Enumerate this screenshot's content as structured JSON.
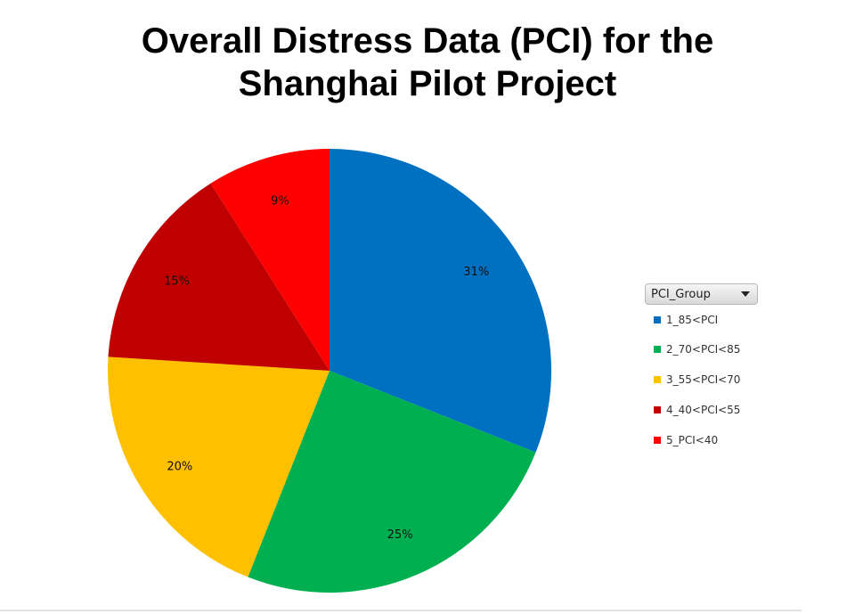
{
  "title_lines": [
    "Overall Distress Data (PCI) for the",
    "Shanghai Pilot Project"
  ],
  "legend": {
    "header": "PCI_Group",
    "icon": "chevron-down-icon"
  },
  "chart_data": {
    "type": "pie",
    "title": "Overall Distress Data (PCI) for the Shanghai Pilot Project",
    "legend_position": "right",
    "legend_title": "PCI_Group",
    "start": "12 o'clock, clockwise",
    "slices": [
      {
        "label": "1_85<PCI",
        "value": 31,
        "display": "31%",
        "color": "#0070c0"
      },
      {
        "label": "2_70<PCI<85",
        "value": 25,
        "display": "25%",
        "color": "#00b050"
      },
      {
        "label": "3_55<PCI<70",
        "value": 20,
        "display": "20%",
        "color": "#ffc000"
      },
      {
        "label": "4_40<PCI<55",
        "value": 15,
        "display": "15%",
        "color": "#c00000"
      },
      {
        "label": "5_PCI<40",
        "value": 9,
        "display": "9%",
        "color": "#ff0000"
      }
    ]
  }
}
